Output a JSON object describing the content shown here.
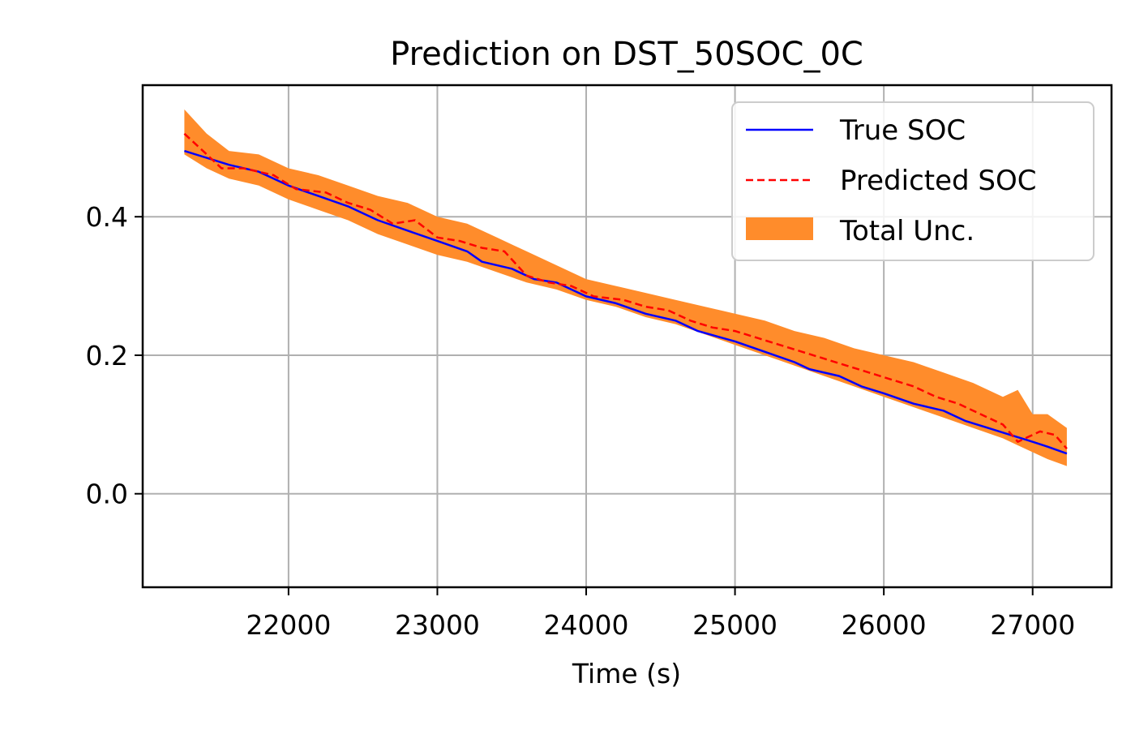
{
  "chart_data": {
    "type": "line",
    "title": "Prediction on DST_50SOC_0C",
    "xlabel": "Time (s)",
    "ylabel": "",
    "xlim": [
      21020,
      27530
    ],
    "ylim": [
      -0.135,
      0.59
    ],
    "grid": true,
    "legend_position": "top-right",
    "x_ticks": [
      22000,
      23000,
      24000,
      25000,
      26000,
      27000
    ],
    "x_tick_labels": [
      "22000",
      "23000",
      "24000",
      "25000",
      "26000",
      "27000"
    ],
    "y_ticks": [
      0.0,
      0.2,
      0.4
    ],
    "y_tick_labels": [
      "0.0",
      "0.2",
      "0.4"
    ],
    "series": [
      {
        "name": "True SOC",
        "kind": "line",
        "color": "#0000ff",
        "style": "solid",
        "x": [
          21300,
          21450,
          21600,
          21800,
          22000,
          22200,
          22400,
          22600,
          22800,
          23000,
          23200,
          23300,
          23500,
          23650,
          23800,
          24000,
          24200,
          24400,
          24600,
          24750,
          25000,
          25200,
          25400,
          25500,
          25700,
          25850,
          26000,
          26200,
          26400,
          26550,
          26700,
          26850,
          27000,
          27100,
          27230
        ],
        "values": [
          0.495,
          0.485,
          0.475,
          0.465,
          0.445,
          0.43,
          0.415,
          0.395,
          0.38,
          0.365,
          0.35,
          0.335,
          0.325,
          0.31,
          0.305,
          0.285,
          0.275,
          0.26,
          0.25,
          0.235,
          0.22,
          0.205,
          0.19,
          0.18,
          0.17,
          0.155,
          0.145,
          0.13,
          0.12,
          0.105,
          0.095,
          0.085,
          0.075,
          0.068,
          0.058
        ]
      },
      {
        "name": "Predicted SOC",
        "kind": "line",
        "color": "#ff0000",
        "style": "dashed",
        "x": [
          21300,
          21400,
          21550,
          21700,
          21900,
          22050,
          22250,
          22400,
          22550,
          22700,
          22850,
          23000,
          23150,
          23300,
          23450,
          23600,
          23750,
          23900,
          24050,
          24250,
          24400,
          24550,
          24700,
          24850,
          25000,
          25150,
          25300,
          25450,
          25600,
          25750,
          25900,
          26050,
          26200,
          26350,
          26500,
          26650,
          26800,
          26900,
          26950,
          27050,
          27150,
          27230
        ],
        "values": [
          0.52,
          0.5,
          0.47,
          0.47,
          0.46,
          0.44,
          0.435,
          0.42,
          0.41,
          0.39,
          0.395,
          0.37,
          0.365,
          0.355,
          0.35,
          0.315,
          0.305,
          0.3,
          0.285,
          0.28,
          0.27,
          0.265,
          0.25,
          0.24,
          0.235,
          0.225,
          0.215,
          0.205,
          0.195,
          0.185,
          0.175,
          0.165,
          0.155,
          0.14,
          0.13,
          0.115,
          0.1,
          0.075,
          0.08,
          0.09,
          0.085,
          0.065
        ]
      },
      {
        "name": "Total Unc.",
        "kind": "band",
        "color": "#ff8c2b",
        "x": [
          21300,
          21450,
          21600,
          21800,
          22000,
          22200,
          22400,
          22600,
          22800,
          23000,
          23200,
          23400,
          23600,
          23800,
          24000,
          24200,
          24400,
          24600,
          24800,
          25000,
          25200,
          25400,
          25600,
          25800,
          26000,
          26200,
          26400,
          26600,
          26800,
          26900,
          27000,
          27100,
          27230
        ],
        "lower": [
          0.49,
          0.47,
          0.455,
          0.445,
          0.425,
          0.41,
          0.395,
          0.375,
          0.36,
          0.345,
          0.335,
          0.32,
          0.305,
          0.295,
          0.28,
          0.27,
          0.255,
          0.245,
          0.23,
          0.215,
          0.2,
          0.185,
          0.17,
          0.155,
          0.14,
          0.125,
          0.11,
          0.095,
          0.08,
          0.07,
          0.06,
          0.05,
          0.04
        ],
        "upper": [
          0.555,
          0.52,
          0.495,
          0.49,
          0.47,
          0.46,
          0.445,
          0.43,
          0.42,
          0.4,
          0.39,
          0.37,
          0.35,
          0.33,
          0.31,
          0.3,
          0.29,
          0.28,
          0.27,
          0.26,
          0.25,
          0.235,
          0.225,
          0.21,
          0.2,
          0.19,
          0.175,
          0.16,
          0.14,
          0.15,
          0.115,
          0.115,
          0.095
        ]
      }
    ]
  }
}
